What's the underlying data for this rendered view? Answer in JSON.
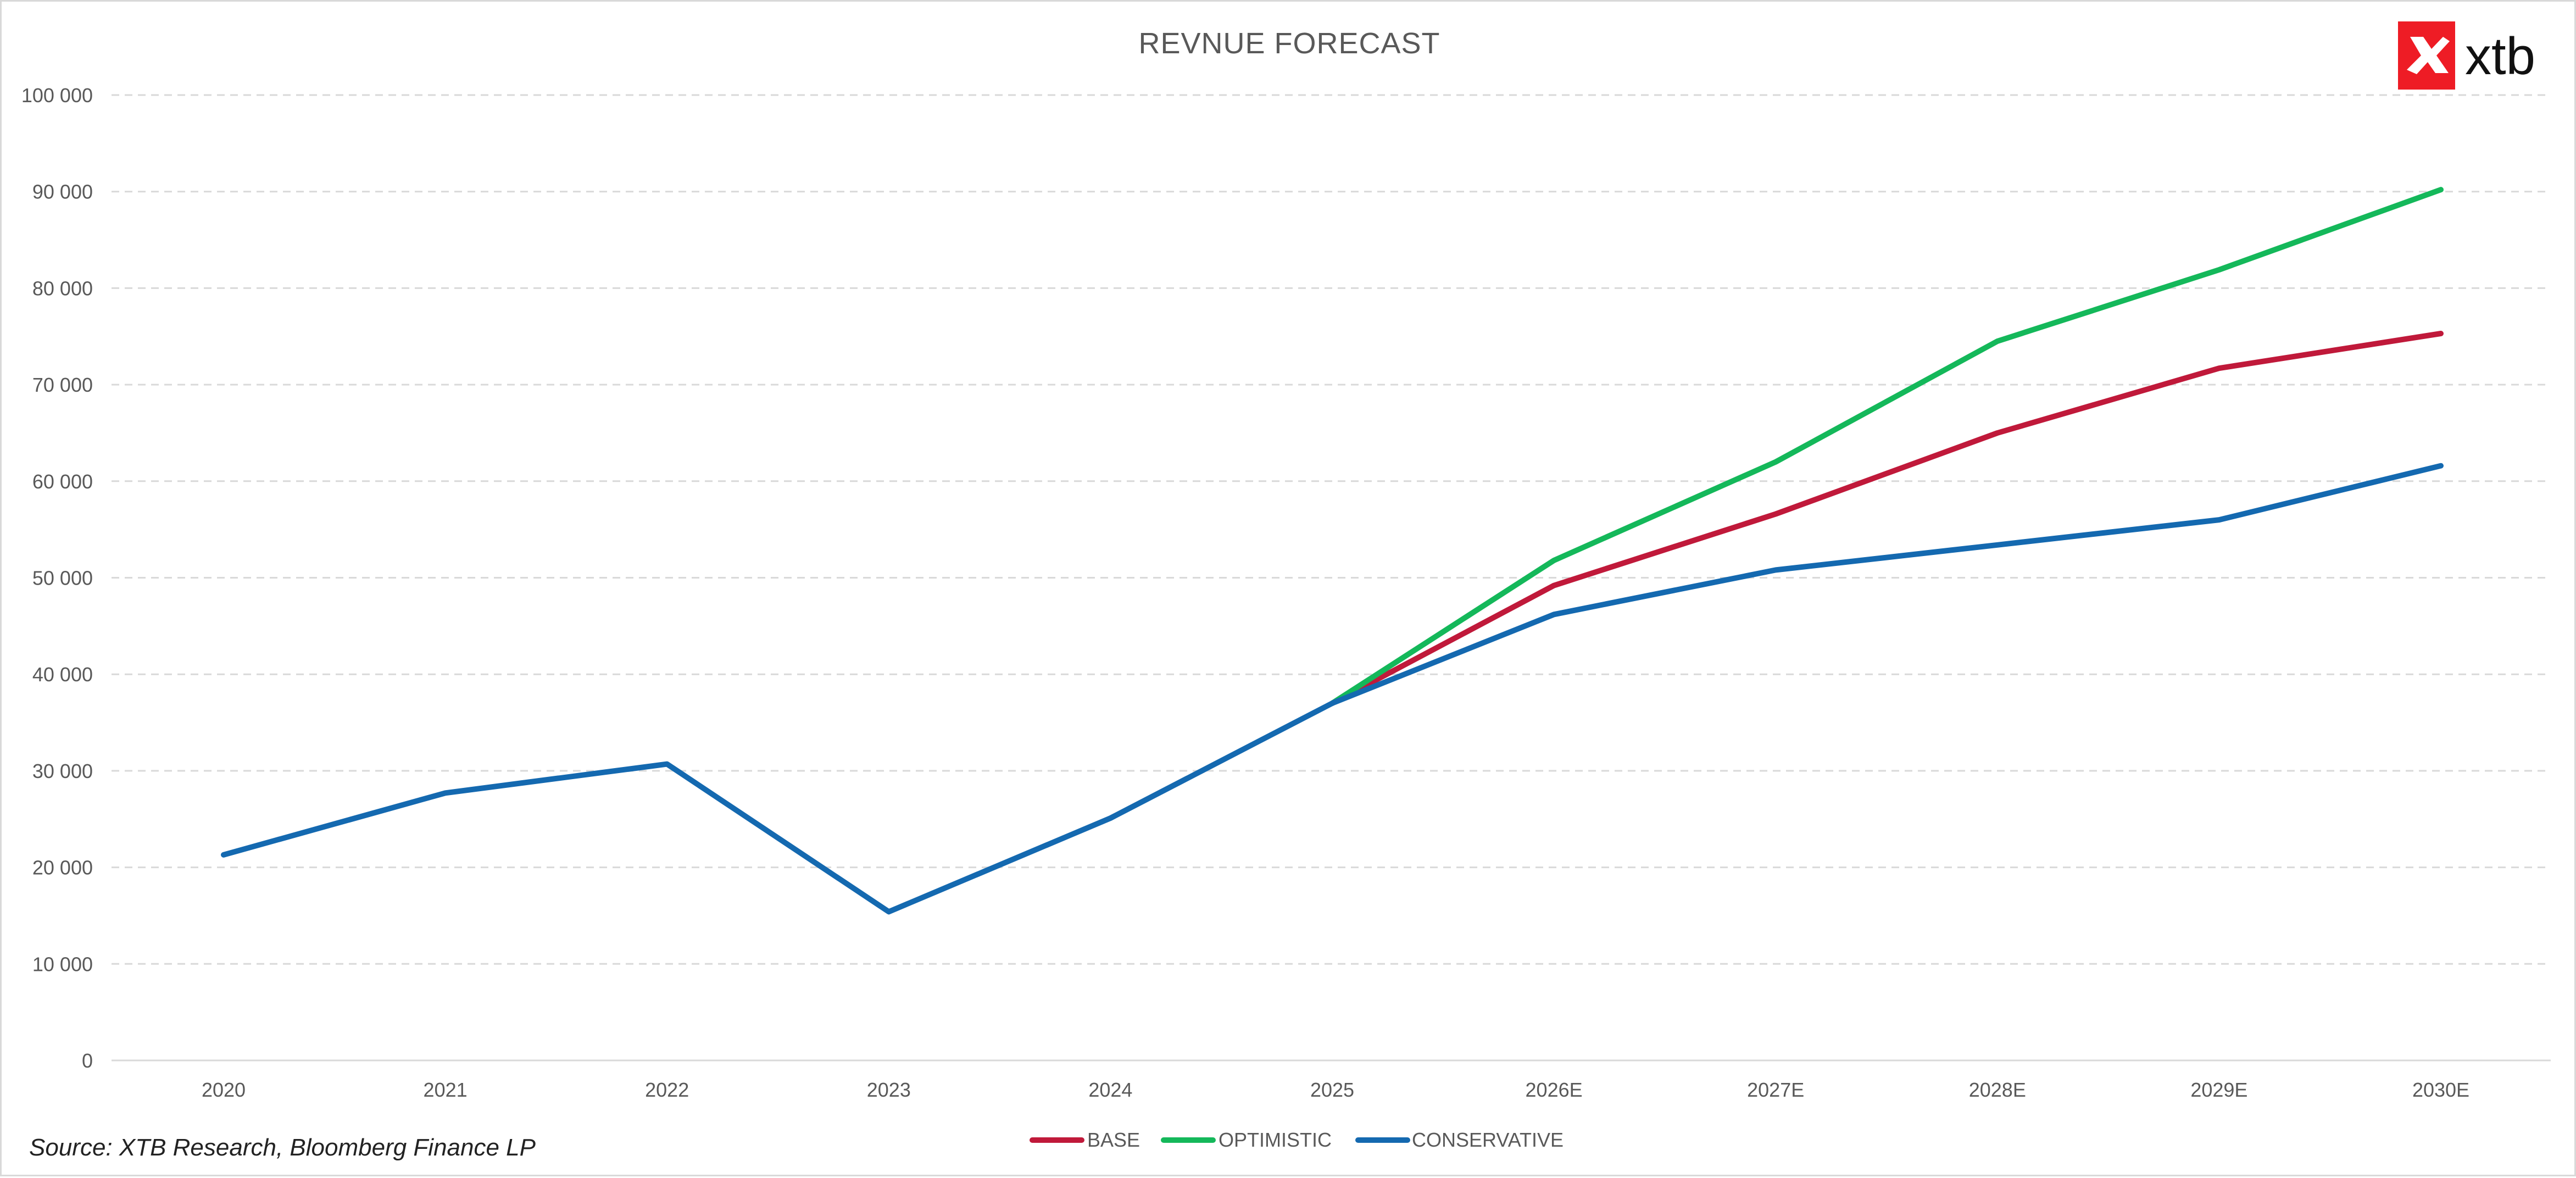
{
  "chart_data": {
    "type": "line",
    "title": "REVNUE FORECAST",
    "xlabel": "",
    "ylabel": "",
    "categories": [
      "2020",
      "2021",
      "2022",
      "2023",
      "2024",
      "2025",
      "2026E",
      "2027E",
      "2028E",
      "2029E",
      "2030E"
    ],
    "ylim": [
      0,
      100000
    ],
    "yticks": [
      0,
      10000,
      20000,
      30000,
      40000,
      50000,
      60000,
      70000,
      80000,
      90000,
      100000
    ],
    "ytick_labels": [
      "0",
      "10 000",
      "20 000",
      "30 000",
      "40 000",
      "50 000",
      "60 000",
      "70 000",
      "80 000",
      "90 000",
      "100 000"
    ],
    "grid": true,
    "legend_position": "bottom-center",
    "series": [
      {
        "name": "BASE",
        "color": "#c0193a",
        "values": [
          null,
          null,
          null,
          null,
          null,
          37000,
          49200,
          56600,
          65000,
          71700,
          75300
        ]
      },
      {
        "name": "OPTIMISTIC",
        "color": "#14b85a",
        "values": [
          null,
          null,
          null,
          null,
          null,
          37000,
          51800,
          62000,
          74500,
          81900,
          90200
        ]
      },
      {
        "name": "CONSERVATIVE",
        "color": "#1469b0",
        "values": [
          21300,
          27700,
          30700,
          15400,
          25100,
          37000,
          46200,
          50800,
          53400,
          56000,
          61600
        ]
      }
    ]
  },
  "footer": {
    "source": "Source: XTB Research, Bloomberg Finance LP"
  },
  "logo": {
    "text": "xtb",
    "color": "#ee1c25"
  }
}
